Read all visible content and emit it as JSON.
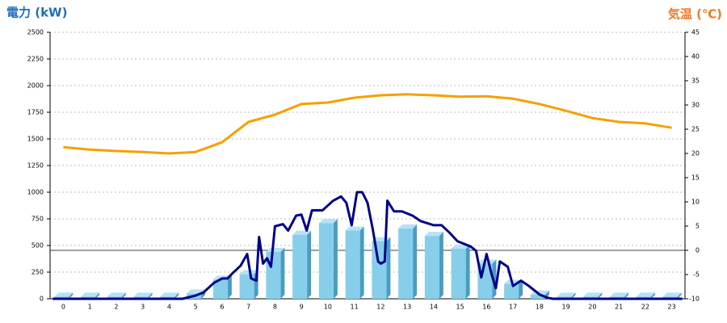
{
  "chart_data": {
    "type": "bar",
    "y_label": "電力 (kW)",
    "y2_label": "気温 (℃)",
    "categories": [
      "0",
      "1",
      "2",
      "3",
      "4",
      "5",
      "6",
      "7",
      "8",
      "9",
      "10",
      "11",
      "12",
      "13",
      "14",
      "15",
      "16",
      "17",
      "18",
      "19",
      "20",
      "21",
      "22",
      "23"
    ],
    "ylim": [
      0,
      2500
    ],
    "yticks": [
      0,
      250,
      500,
      750,
      1000,
      1250,
      1500,
      1750,
      2000,
      2250,
      2500
    ],
    "y2lim": [
      -10,
      45
    ],
    "y2ticks": [
      -10,
      -5,
      0,
      5,
      10,
      15,
      20,
      25,
      30,
      35,
      40,
      45
    ],
    "grid": true,
    "series": [
      {
        "type": "bar",
        "color": "#87ceeb",
        "values": [
          20,
          20,
          20,
          20,
          20,
          50,
          180,
          230,
          440,
          600,
          710,
          640,
          540,
          660,
          590,
          470,
          330,
          140,
          40,
          20,
          20,
          20,
          20,
          20
        ]
      },
      {
        "type": "line",
        "axis": "y2",
        "color": "#f5a000",
        "values": [
          21.3,
          20.8,
          20.5,
          20.3,
          20,
          20.3,
          22.3,
          26.5,
          28,
          30.2,
          30.5,
          31.5,
          32,
          32.2,
          32,
          31.7,
          31.8,
          31.3,
          30.2,
          28.8,
          27.3,
          26.5,
          26.2,
          25.3
        ]
      },
      {
        "type": "line",
        "color": "#00008b",
        "x": [
          -0.4,
          4.5,
          5,
          5.3,
          5.7,
          6,
          6.2,
          6.4,
          6.7,
          6.95,
          7.1,
          7.3,
          7.4,
          7.55,
          7.7,
          7.85,
          8,
          8.3,
          8.5,
          8.8,
          9,
          9.2,
          9.4,
          9.8,
          10.2,
          10.5,
          10.7,
          10.9,
          11.1,
          11.3,
          11.5,
          11.7,
          11.9,
          12,
          12.15,
          12.25,
          12.5,
          12.8,
          13.2,
          13.5,
          14,
          14.3,
          14.6,
          14.9,
          15.4,
          15.6,
          15.8,
          16,
          16.2,
          16.35,
          16.5,
          16.8,
          17,
          17.3,
          17.6,
          18,
          18.3,
          18.5,
          23.4
        ],
        "values": [
          0,
          0,
          30,
          60,
          150,
          190,
          190,
          240,
          310,
          420,
          190,
          170,
          580,
          330,
          380,
          300,
          680,
          700,
          640,
          780,
          790,
          640,
          830,
          830,
          920,
          960,
          900,
          690,
          1000,
          1000,
          900,
          650,
          350,
          330,
          350,
          920,
          820,
          820,
          780,
          730,
          690,
          690,
          620,
          540,
          490,
          450,
          200,
          420,
          220,
          100,
          350,
          300,
          120,
          170,
          120,
          40,
          10,
          0,
          0
        ]
      }
    ]
  }
}
